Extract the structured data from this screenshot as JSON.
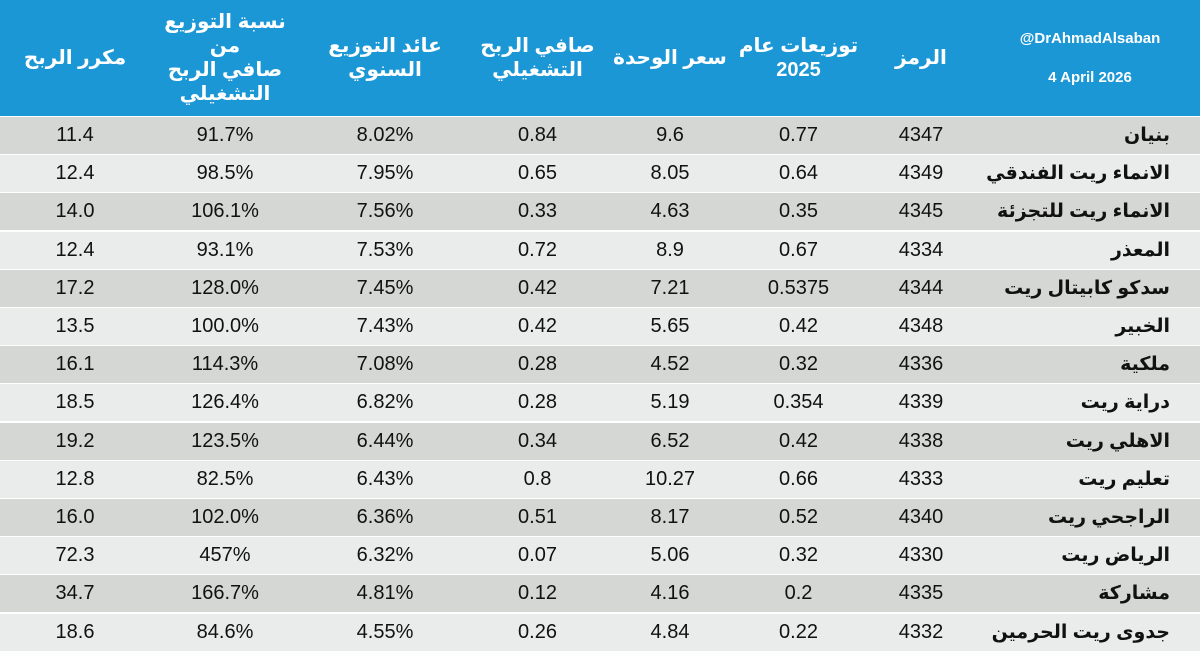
{
  "header": {
    "credit_handle": "@DrAhmadAlsaban",
    "credit_date": "4 April 2026",
    "col_symbol": "الرمز",
    "col_dist_2025": "توزيعات عام\n2025",
    "col_unit_price": "سعر الوحدة",
    "col_net_op_profit": "صافي الربح\nالتشغيلي",
    "col_annual_yield": "عائد التوزيع السنوي",
    "col_payout_ratio": "نسبة التوزيع من\nصافي الربح\nالتشغيلي",
    "col_pe": "مكرر الربح"
  },
  "rows": [
    {
      "name": "بنيان",
      "symbol": "4347",
      "dist": "0.77",
      "price": "9.6",
      "profit": "0.84",
      "yield": "8.02%",
      "payout": "91.7%",
      "pe": "11.4"
    },
    {
      "name": "الانماء ريت الفندقي",
      "symbol": "4349",
      "dist": "0.64",
      "price": "8.05",
      "profit": "0.65",
      "yield": "7.95%",
      "payout": "98.5%",
      "pe": "12.4"
    },
    {
      "name": "الانماء ريت للتجزئة",
      "symbol": "4345",
      "dist": "0.35",
      "price": "4.63",
      "profit": "0.33",
      "yield": "7.56%",
      "payout": "106.1%",
      "pe": "14.0"
    },
    {
      "name": "المعذر",
      "symbol": "4334",
      "dist": "0.67",
      "price": "8.9",
      "profit": "0.72",
      "yield": "7.53%",
      "payout": "93.1%",
      "pe": "12.4"
    },
    {
      "name": "سدكو كابيتال ريت",
      "symbol": "4344",
      "dist": "0.5375",
      "price": "7.21",
      "profit": "0.42",
      "yield": "7.45%",
      "payout": "128.0%",
      "pe": "17.2"
    },
    {
      "name": "الخبير",
      "symbol": "4348",
      "dist": "0.42",
      "price": "5.65",
      "profit": "0.42",
      "yield": "7.43%",
      "payout": "100.0%",
      "pe": "13.5"
    },
    {
      "name": "ملكية",
      "symbol": "4336",
      "dist": "0.32",
      "price": "4.52",
      "profit": "0.28",
      "yield": "7.08%",
      "payout": "114.3%",
      "pe": "16.1"
    },
    {
      "name": "دراية ريت",
      "symbol": "4339",
      "dist": "0.354",
      "price": "5.19",
      "profit": "0.28",
      "yield": "6.82%",
      "payout": "126.4%",
      "pe": "18.5"
    },
    {
      "name": "الاهلي ريت",
      "symbol": "4338",
      "dist": "0.42",
      "price": "6.52",
      "profit": "0.34",
      "yield": "6.44%",
      "payout": "123.5%",
      "pe": "19.2"
    },
    {
      "name": "تعليم ريت",
      "symbol": "4333",
      "dist": "0.66",
      "price": "10.27",
      "profit": "0.8",
      "yield": "6.43%",
      "payout": "82.5%",
      "pe": "12.8"
    },
    {
      "name": "الراجحي ريت",
      "symbol": "4340",
      "dist": "0.52",
      "price": "8.17",
      "profit": "0.51",
      "yield": "6.36%",
      "payout": "102.0%",
      "pe": "16.0"
    },
    {
      "name": "الرياض ريت",
      "symbol": "4330",
      "dist": "0.32",
      "price": "5.06",
      "profit": "0.07",
      "yield": "6.32%",
      "payout": "457%",
      "pe": "72.3"
    },
    {
      "name": "مشاركة",
      "symbol": "4335",
      "dist": "0.2",
      "price": "4.16",
      "profit": "0.12",
      "yield": "4.81%",
      "payout": "166.7%",
      "pe": "34.7"
    },
    {
      "name": "جدوى ريت الحرمين",
      "symbol": "4332",
      "dist": "0.22",
      "price": "4.84",
      "profit": "0.26",
      "yield": "4.55%",
      "payout": "84.6%",
      "pe": "18.6"
    }
  ],
  "colors": {
    "header_bg": "#1c97d6",
    "row_dark": "#d5d7d4",
    "row_light": "#e9ecea"
  }
}
